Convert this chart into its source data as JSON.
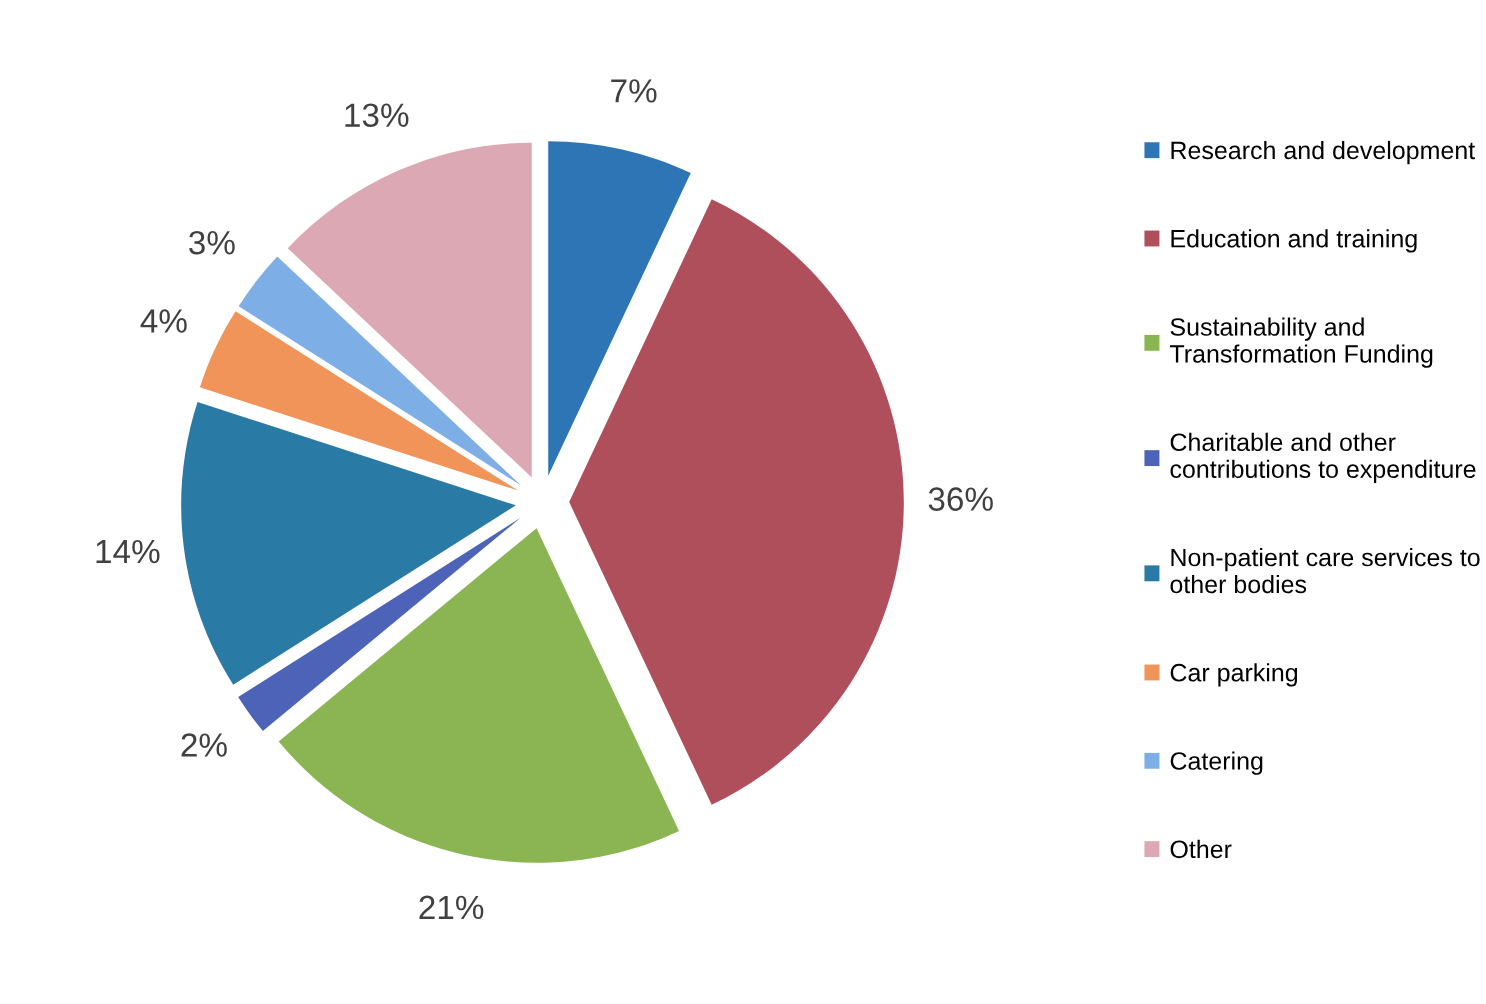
{
  "chart_data": {
    "type": "pie",
    "categories": [
      "Research and development",
      "Education and training",
      "Sustainability and\nTransformation Funding",
      "Charitable and other\ncontributions to expenditure",
      "Non-patient care services to\nother bodies",
      "Car parking",
      "Catering",
      "Other"
    ],
    "values": [
      7,
      36,
      21,
      2,
      14,
      4,
      3,
      13
    ],
    "colors": [
      "#2e75b6",
      "#b04f5c",
      "#8ab552",
      "#4d63b8",
      "#2a7aa6",
      "#f0945a",
      "#7eaee6",
      "#dca8b4"
    ],
    "value_labels": [
      "7%",
      "36%",
      "21%",
      "2%",
      "14%",
      "4%",
      "3%",
      "13%"
    ],
    "legend": "right"
  }
}
